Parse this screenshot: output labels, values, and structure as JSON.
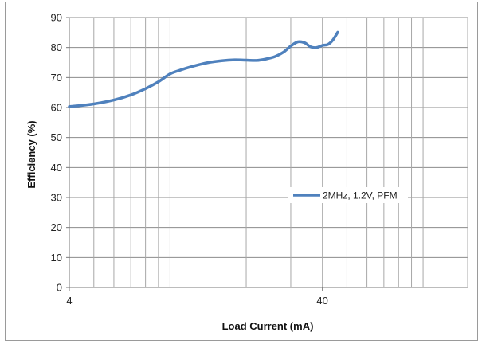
{
  "chart_data": {
    "type": "line",
    "title": "",
    "xlabel": "Load Current (mA)",
    "ylabel": "Efficiency (%)",
    "x_scale": "log",
    "xlim": [
      4,
      150
    ],
    "ylim": [
      0,
      90
    ],
    "x_ticks": [
      4,
      40
    ],
    "x_tick_labels": [
      "4",
      "40"
    ],
    "y_ticks": [
      0,
      10,
      20,
      30,
      40,
      50,
      60,
      70,
      80,
      90
    ],
    "grid": true,
    "legend_position": "right-middle",
    "series": [
      {
        "name": "2MHz, 1.2V, PFM",
        "color": "#4f81bd",
        "x": [
          4,
          5,
          6,
          7,
          8,
          9,
          10,
          11,
          12,
          14,
          16,
          18,
          20,
          22,
          24,
          26,
          28,
          30,
          32,
          34,
          36,
          38,
          40,
          42,
          44,
          46
        ],
        "y": [
          60.3,
          61.2,
          62.5,
          64.2,
          66.3,
          68.6,
          71.2,
          72.5,
          73.5,
          74.9,
          75.6,
          75.9,
          75.8,
          75.7,
          76.2,
          77.0,
          78.4,
          80.5,
          81.9,
          81.6,
          80.2,
          80.0,
          80.7,
          81.0,
          82.5,
          85.1
        ]
      }
    ]
  }
}
